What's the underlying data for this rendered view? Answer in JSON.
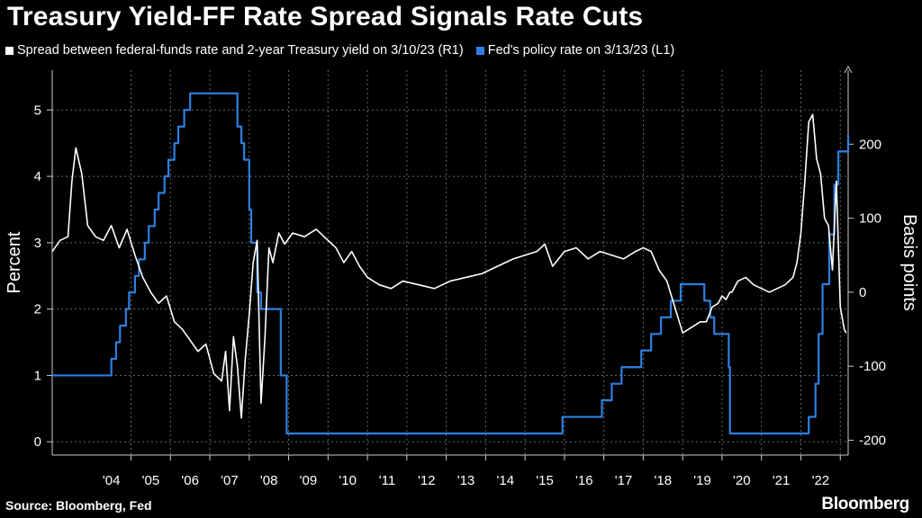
{
  "title": "Treasury Yield-FF Rate Spread Signals Rate Cuts",
  "legend": [
    {
      "label": "Spread between federal-funds rate and 2-year Treasury yield on 3/10/23 (R1)",
      "color": "#ffffff"
    },
    {
      "label": "Fed's policy rate on 3/13/23 (L1)",
      "color": "#2f7fe0"
    }
  ],
  "source": "Source: Bloomberg, Fed",
  "brand": "Bloomberg",
  "chart_data": {
    "type": "line",
    "title": "Treasury Yield-FF Rate Spread Signals Rate Cuts",
    "ylabel_left": "Percent",
    "ylabel_right": "Basis points",
    "x_range": [
      2003.0,
      2023.2
    ],
    "ylim_left": [
      -0.2,
      5.6
    ],
    "ylim_right": [
      -220,
      300
    ],
    "left_ticks": [
      "0",
      "1",
      "2",
      "3",
      "4",
      "5"
    ],
    "right_ticks": [
      "-200",
      "-100",
      "0",
      "100",
      "200"
    ],
    "x_tick_labels": [
      "'04",
      "'05",
      "'06",
      "'07",
      "'08",
      "'09",
      "'10",
      "'11",
      "'12",
      "'13",
      "'14",
      "'15",
      "'16",
      "'17",
      "'18",
      "'19",
      "'20",
      "'21",
      "'22"
    ],
    "grid": true,
    "series": [
      {
        "name": "Fed's policy rate on 3/13/23 (L1)",
        "axis": "left",
        "color": "#2f7fe0",
        "step": true,
        "x": [
          2003.0,
          2004.5,
          2004.62,
          2004.72,
          2004.87,
          2004.95,
          2005.1,
          2005.2,
          2005.35,
          2005.45,
          2005.6,
          2005.7,
          2005.85,
          2005.95,
          2006.1,
          2006.2,
          2006.35,
          2006.5,
          2007.7,
          2007.8,
          2007.87,
          2008.0,
          2008.05,
          2008.2,
          2008.3,
          2008.8,
          2008.95,
          2015.95,
          2016.95,
          2017.2,
          2017.45,
          2017.95,
          2018.2,
          2018.45,
          2018.7,
          2018.95,
          2019.55,
          2019.7,
          2019.8,
          2020.17,
          2020.2,
          2022.2,
          2022.37,
          2022.45,
          2022.55,
          2022.72,
          2022.85,
          2022.95,
          2023.2
        ],
        "values": [
          1.0,
          1.25,
          1.5,
          1.75,
          2.0,
          2.25,
          2.5,
          2.75,
          3.0,
          3.25,
          3.5,
          3.75,
          4.0,
          4.25,
          4.5,
          4.75,
          5.0,
          5.25,
          4.75,
          4.5,
          4.25,
          3.5,
          3.0,
          2.25,
          2.0,
          1.0,
          0.125,
          0.375,
          0.625,
          0.875,
          1.125,
          1.375,
          1.625,
          1.875,
          2.125,
          2.375,
          2.125,
          1.875,
          1.625,
          1.125,
          0.125,
          0.375,
          0.875,
          1.625,
          2.375,
          3.125,
          3.875,
          4.375,
          4.625
        ]
      },
      {
        "name": "Spread between federal-funds rate and 2-year Treasury yield on 3/10/23 (R1)",
        "axis": "right",
        "color": "#ffffff",
        "x": [
          2003.0,
          2003.2,
          2003.4,
          2003.5,
          2003.6,
          2003.75,
          2003.9,
          2004.1,
          2004.3,
          2004.5,
          2004.7,
          2004.9,
          2005.1,
          2005.3,
          2005.5,
          2005.7,
          2005.9,
          2006.1,
          2006.3,
          2006.5,
          2006.7,
          2006.9,
          2007.1,
          2007.3,
          2007.4,
          2007.5,
          2007.6,
          2007.7,
          2007.8,
          2007.9,
          2008.0,
          2008.1,
          2008.2,
          2008.3,
          2008.4,
          2008.5,
          2008.6,
          2008.75,
          2008.9,
          2009.1,
          2009.4,
          2009.7,
          2010.0,
          2010.2,
          2010.4,
          2010.6,
          2010.8,
          2011.0,
          2011.3,
          2011.6,
          2011.9,
          2012.3,
          2012.7,
          2013.1,
          2013.5,
          2013.9,
          2014.3,
          2014.7,
          2015.0,
          2015.3,
          2015.5,
          2015.7,
          2016.0,
          2016.3,
          2016.6,
          2016.9,
          2017.2,
          2017.5,
          2017.8,
          2018.0,
          2018.2,
          2018.4,
          2018.6,
          2018.8,
          2019.0,
          2019.15,
          2019.3,
          2019.45,
          2019.6,
          2019.75,
          2019.9,
          2020.0,
          2020.1,
          2020.2,
          2020.25,
          2020.4,
          2020.6,
          2020.8,
          2021.0,
          2021.2,
          2021.4,
          2021.6,
          2021.8,
          2021.9,
          2022.0,
          2022.1,
          2022.2,
          2022.3,
          2022.4,
          2022.5,
          2022.6,
          2022.7,
          2022.8,
          2022.9,
          2023.0,
          2023.1,
          2023.15
        ],
        "values": [
          55,
          70,
          75,
          150,
          195,
          160,
          90,
          75,
          70,
          90,
          60,
          85,
          50,
          20,
          0,
          -15,
          -5,
          -40,
          -50,
          -65,
          -80,
          -70,
          -110,
          -120,
          -80,
          -160,
          -60,
          -100,
          -170,
          -90,
          -30,
          40,
          70,
          -150,
          -60,
          60,
          40,
          80,
          65,
          80,
          75,
          85,
          70,
          60,
          40,
          55,
          35,
          20,
          10,
          5,
          15,
          10,
          5,
          15,
          20,
          25,
          35,
          45,
          50,
          55,
          65,
          35,
          55,
          60,
          45,
          55,
          50,
          45,
          55,
          60,
          55,
          30,
          15,
          -20,
          -55,
          -50,
          -45,
          -40,
          -40,
          -20,
          -15,
          -5,
          -10,
          0,
          0,
          15,
          20,
          10,
          5,
          0,
          5,
          10,
          20,
          40,
          80,
          150,
          230,
          240,
          180,
          160,
          100,
          90,
          30,
          150,
          -20,
          -50,
          -55
        ]
      }
    ]
  }
}
